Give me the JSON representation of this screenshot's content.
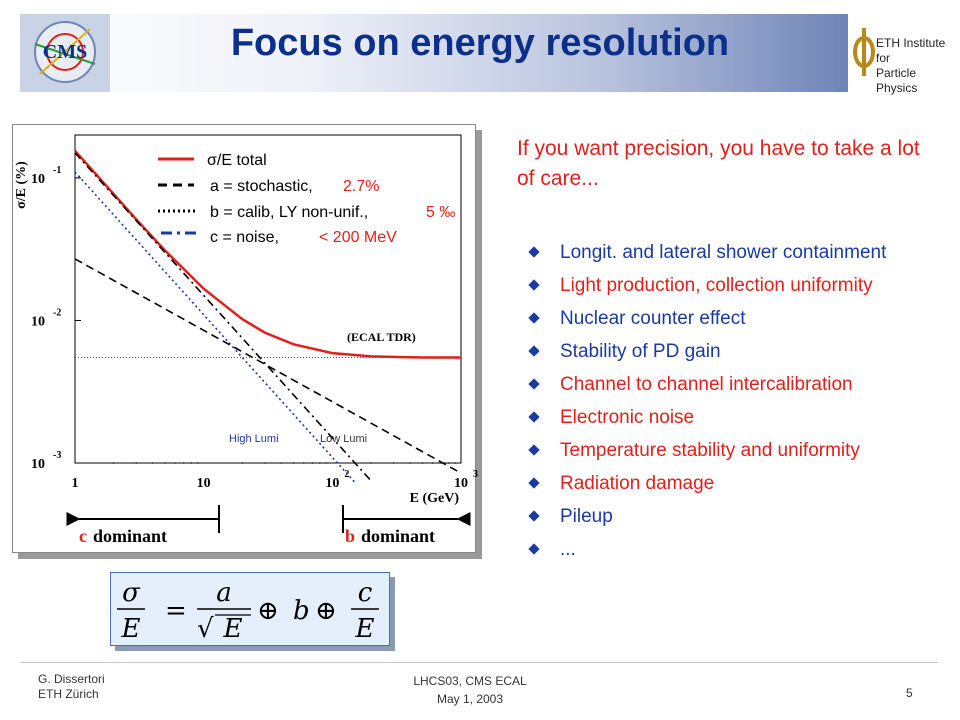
{
  "slide": {
    "title": "Focus on energy resolution",
    "intro": "If you want precision, you have to take a lot of care...",
    "bullets": [
      {
        "text": "Longit. and lateral shower containment",
        "color": "#1a3aa0"
      },
      {
        "text": "Light production, collection uniformity",
        "color": "#e0201a"
      },
      {
        "text": "Nuclear counter effect",
        "color": "#1a3aa0"
      },
      {
        "text": "Stability of PD gain",
        "color": "#1a3aa0"
      },
      {
        "text": "Channel to channel intercalibration",
        "color": "#e0201a"
      },
      {
        "text": "Electronic noise",
        "color": "#e0201a"
      },
      {
        "text": "Temperature stability and uniformity",
        "color": "#e0201a"
      },
      {
        "text": "Radiation damage",
        "color": "#e0201a"
      },
      {
        "text": "Pileup",
        "color": "#1a3aa0"
      },
      {
        "text": "...",
        "color": "#1a3aa0"
      }
    ],
    "formula": {
      "lhs_num": "σ",
      "lhs_den": "E",
      "a_num": "a",
      "a_den": "E",
      "b": "b",
      "c_num": "c",
      "c_den": "E",
      "eq": "=",
      "oplus": "⊕",
      "sqrt": "√"
    },
    "logos": {
      "cms": "CMS",
      "eth_line1": "ETH Institute for",
      "eth_line2": "Particle Physics"
    },
    "footer": {
      "author": "G. Dissertori",
      "institute": "ETH Zürich",
      "conference": "LHCS03,   CMS ECAL",
      "date": "May 1, 2003",
      "page": "5"
    }
  },
  "chart_data": {
    "type": "line",
    "x_scale": "log",
    "y_scale": "log",
    "xlim": [
      1,
      1000
    ],
    "ylim": [
      0.001,
      0.2
    ],
    "xlabel": "E (GeV)",
    "ylabel": "σ/E (%)",
    "x_ticks": [
      {
        "base": "1",
        "exp": ""
      },
      {
        "base": "10",
        "exp": ""
      },
      {
        "base": "10",
        "exp": "2"
      },
      {
        "base": "10",
        "exp": "3"
      }
    ],
    "y_ticks": [
      {
        "base": "10",
        "exp": "-1"
      },
      {
        "base": "10",
        "exp": "-2"
      },
      {
        "base": "10",
        "exp": "-3"
      }
    ],
    "annotation": "(ECAL TDR)",
    "high_lumi_label": "High Lumi",
    "low_lumi_label": "Low Lumi",
    "reference_line_y": 0.0055,
    "legend": [
      {
        "label": "σ/E total",
        "value": "",
        "color": "#e0201a",
        "dash": "solid"
      },
      {
        "label": "a = stochastic,",
        "value": "2.7%",
        "color": "#000000",
        "dash": "dashed"
      },
      {
        "label": "b = calib, LY non-unif.,",
        "value": "5 ‰",
        "color": "#000000",
        "dash": "dotted"
      },
      {
        "label": "c = noise,",
        "value": "< 200 MeV",
        "color": "#1a3aa0",
        "dash": "dashdot"
      }
    ],
    "series": [
      {
        "name": "σ/E total",
        "color": "#e0201a",
        "dash": "solid",
        "x": [
          1,
          2,
          3,
          5,
          10,
          20,
          30,
          50,
          100,
          200,
          500,
          1000
        ],
        "y": [
          0.155,
          0.077,
          0.051,
          0.031,
          0.0167,
          0.0102,
          0.0082,
          0.0068,
          0.0059,
          0.0056,
          0.0055,
          0.0055
        ]
      },
      {
        "name": "stochastic",
        "color": "#000000",
        "dash": "dashed",
        "x": [
          1,
          1000
        ],
        "y": [
          0.027,
          0.00085
        ]
      },
      {
        "name": "noise (low lumi)",
        "color": "#000000",
        "dash": "dashdot",
        "x": [
          1,
          200
        ],
        "y": [
          0.15,
          0.00075
        ]
      },
      {
        "name": "noise (high lumi)",
        "color": "#1a3aa0",
        "dash": "dotted",
        "x": [
          1,
          150
        ],
        "y": [
          0.11,
          0.00073
        ]
      }
    ]
  },
  "labels": {
    "c_dominant": "c dominant",
    "b_dominant": "b dominant",
    "c_letter": "c",
    "b_letter": "b",
    "dominant": "dominant"
  }
}
